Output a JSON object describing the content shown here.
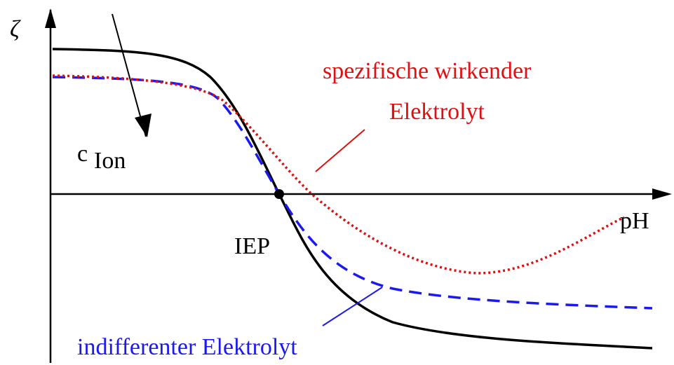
{
  "axes": {
    "y_label": "ζ",
    "x_label": "pH"
  },
  "annotations": {
    "iep": "IEP",
    "concentration": "c",
    "concentration_sub": "Ion",
    "specific_line1": "spezifische wirkender",
    "specific_line2": "Elektrolyt",
    "indifferent": "indifferenter Elektrolyt"
  }
}
